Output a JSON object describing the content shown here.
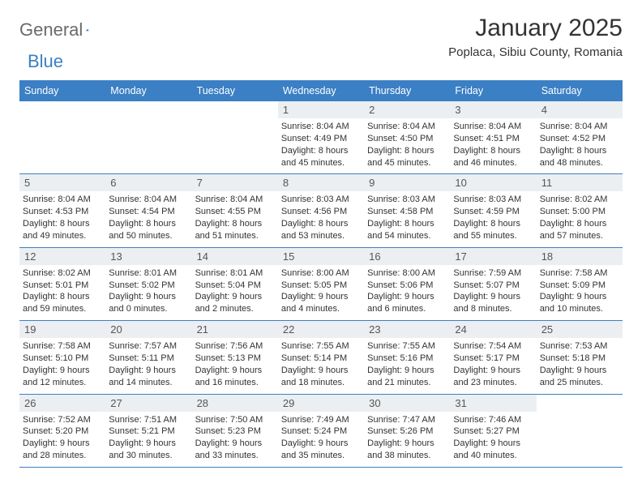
{
  "brand": {
    "part1": "General",
    "part2": "Blue"
  },
  "title": "January 2025",
  "location": "Poplaca, Sibiu County, Romania",
  "colors": {
    "header_bg": "#3b7fc4",
    "header_text": "#ffffff",
    "daynum_bg": "#eceff1",
    "border": "#3b7fc4",
    "body_text": "#333333"
  },
  "weekdays": [
    "Sunday",
    "Monday",
    "Tuesday",
    "Wednesday",
    "Thursday",
    "Friday",
    "Saturday"
  ],
  "weeks": [
    [
      {
        "n": "",
        "empty": true
      },
      {
        "n": "",
        "empty": true
      },
      {
        "n": "",
        "empty": true
      },
      {
        "n": "1",
        "sr": "8:04 AM",
        "ss": "4:49 PM",
        "dl": "8 hours and 45 minutes."
      },
      {
        "n": "2",
        "sr": "8:04 AM",
        "ss": "4:50 PM",
        "dl": "8 hours and 45 minutes."
      },
      {
        "n": "3",
        "sr": "8:04 AM",
        "ss": "4:51 PM",
        "dl": "8 hours and 46 minutes."
      },
      {
        "n": "4",
        "sr": "8:04 AM",
        "ss": "4:52 PM",
        "dl": "8 hours and 48 minutes."
      }
    ],
    [
      {
        "n": "5",
        "sr": "8:04 AM",
        "ss": "4:53 PM",
        "dl": "8 hours and 49 minutes."
      },
      {
        "n": "6",
        "sr": "8:04 AM",
        "ss": "4:54 PM",
        "dl": "8 hours and 50 minutes."
      },
      {
        "n": "7",
        "sr": "8:04 AM",
        "ss": "4:55 PM",
        "dl": "8 hours and 51 minutes."
      },
      {
        "n": "8",
        "sr": "8:03 AM",
        "ss": "4:56 PM",
        "dl": "8 hours and 53 minutes."
      },
      {
        "n": "9",
        "sr": "8:03 AM",
        "ss": "4:58 PM",
        "dl": "8 hours and 54 minutes."
      },
      {
        "n": "10",
        "sr": "8:03 AM",
        "ss": "4:59 PM",
        "dl": "8 hours and 55 minutes."
      },
      {
        "n": "11",
        "sr": "8:02 AM",
        "ss": "5:00 PM",
        "dl": "8 hours and 57 minutes."
      }
    ],
    [
      {
        "n": "12",
        "sr": "8:02 AM",
        "ss": "5:01 PM",
        "dl": "8 hours and 59 minutes."
      },
      {
        "n": "13",
        "sr": "8:01 AM",
        "ss": "5:02 PM",
        "dl": "9 hours and 0 minutes."
      },
      {
        "n": "14",
        "sr": "8:01 AM",
        "ss": "5:04 PM",
        "dl": "9 hours and 2 minutes."
      },
      {
        "n": "15",
        "sr": "8:00 AM",
        "ss": "5:05 PM",
        "dl": "9 hours and 4 minutes."
      },
      {
        "n": "16",
        "sr": "8:00 AM",
        "ss": "5:06 PM",
        "dl": "9 hours and 6 minutes."
      },
      {
        "n": "17",
        "sr": "7:59 AM",
        "ss": "5:07 PM",
        "dl": "9 hours and 8 minutes."
      },
      {
        "n": "18",
        "sr": "7:58 AM",
        "ss": "5:09 PM",
        "dl": "9 hours and 10 minutes."
      }
    ],
    [
      {
        "n": "19",
        "sr": "7:58 AM",
        "ss": "5:10 PM",
        "dl": "9 hours and 12 minutes."
      },
      {
        "n": "20",
        "sr": "7:57 AM",
        "ss": "5:11 PM",
        "dl": "9 hours and 14 minutes."
      },
      {
        "n": "21",
        "sr": "7:56 AM",
        "ss": "5:13 PM",
        "dl": "9 hours and 16 minutes."
      },
      {
        "n": "22",
        "sr": "7:55 AM",
        "ss": "5:14 PM",
        "dl": "9 hours and 18 minutes."
      },
      {
        "n": "23",
        "sr": "7:55 AM",
        "ss": "5:16 PM",
        "dl": "9 hours and 21 minutes."
      },
      {
        "n": "24",
        "sr": "7:54 AM",
        "ss": "5:17 PM",
        "dl": "9 hours and 23 minutes."
      },
      {
        "n": "25",
        "sr": "7:53 AM",
        "ss": "5:18 PM",
        "dl": "9 hours and 25 minutes."
      }
    ],
    [
      {
        "n": "26",
        "sr": "7:52 AM",
        "ss": "5:20 PM",
        "dl": "9 hours and 28 minutes."
      },
      {
        "n": "27",
        "sr": "7:51 AM",
        "ss": "5:21 PM",
        "dl": "9 hours and 30 minutes."
      },
      {
        "n": "28",
        "sr": "7:50 AM",
        "ss": "5:23 PM",
        "dl": "9 hours and 33 minutes."
      },
      {
        "n": "29",
        "sr": "7:49 AM",
        "ss": "5:24 PM",
        "dl": "9 hours and 35 minutes."
      },
      {
        "n": "30",
        "sr": "7:47 AM",
        "ss": "5:26 PM",
        "dl": "9 hours and 38 minutes."
      },
      {
        "n": "31",
        "sr": "7:46 AM",
        "ss": "5:27 PM",
        "dl": "9 hours and 40 minutes."
      },
      {
        "n": "",
        "empty": true
      }
    ]
  ],
  "labels": {
    "sunrise": "Sunrise:",
    "sunset": "Sunset:",
    "daylight": "Daylight:"
  }
}
